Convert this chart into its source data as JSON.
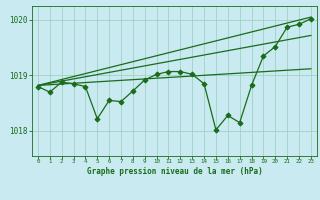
{
  "title": "Graphe pression niveau de la mer (hPa)",
  "bg_color": "#c8eaf0",
  "grid_color": "#99ccbb",
  "line_color": "#1a6b1a",
  "xlim": [
    -0.5,
    23.5
  ],
  "ylim": [
    1017.55,
    1020.25
  ],
  "yticks": [
    1018,
    1019,
    1020
  ],
  "xticks": [
    0,
    1,
    2,
    3,
    4,
    5,
    6,
    7,
    8,
    9,
    10,
    11,
    12,
    13,
    14,
    15,
    16,
    17,
    18,
    19,
    20,
    21,
    22,
    23
  ],
  "main_line_x": [
    0,
    1,
    2,
    3,
    4,
    5,
    6,
    7,
    8,
    9,
    10,
    11,
    12,
    13,
    14,
    15,
    16,
    17,
    18,
    19,
    20,
    21,
    22,
    23
  ],
  "main_line_y": [
    1018.8,
    1018.7,
    1018.88,
    1018.85,
    1018.8,
    1018.22,
    1018.55,
    1018.53,
    1018.72,
    1018.92,
    1019.02,
    1019.07,
    1019.07,
    1019.02,
    1018.85,
    1018.02,
    1018.28,
    1018.15,
    1018.82,
    1019.35,
    1019.52,
    1019.87,
    1019.92,
    1020.02
  ],
  "trend_line1_x": [
    0,
    23
  ],
  "trend_line1_y": [
    1018.82,
    1019.12
  ],
  "trend_line2_x": [
    0,
    23
  ],
  "trend_line2_y": [
    1018.82,
    1019.72
  ],
  "trend_line3_x": [
    0,
    23
  ],
  "trend_line3_y": [
    1018.82,
    1020.05
  ]
}
